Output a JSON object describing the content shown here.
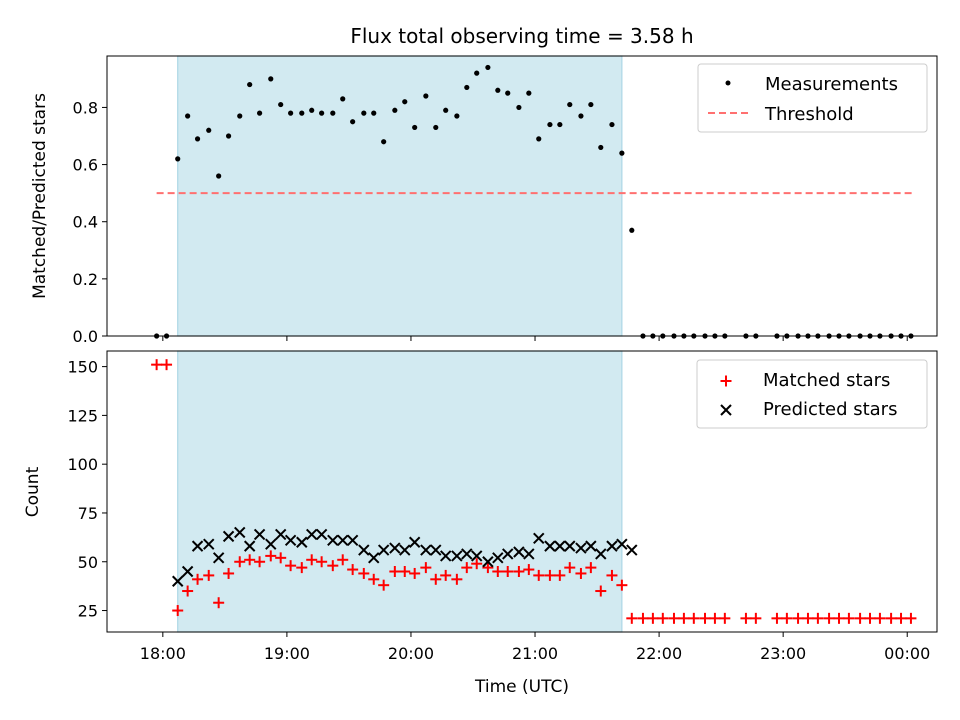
{
  "figure": {
    "title": "Flux total observing time = 3.58 h",
    "xlabel": "Time (UTC)",
    "x_ticks": [
      "18:00",
      "19:00",
      "20:00",
      "21:00",
      "22:00",
      "23:00",
      "00:00"
    ],
    "x_tick_hours": [
      18,
      19,
      20,
      21,
      22,
      23,
      24
    ],
    "xlim_hours": [
      17.55,
      24.24
    ],
    "observing_window_hours": [
      18.12,
      21.7
    ],
    "colors": {
      "window": "#add8e6",
      "measurement": "#000000",
      "threshold": "#ff7070",
      "matched": "#ff0000",
      "predicted": "#000000"
    }
  },
  "chart_data": [
    {
      "type": "scatter",
      "ylabel": "Matched/Predicted stars",
      "ylim": [
        0,
        0.98
      ],
      "y_ticks": [
        0.0,
        0.2,
        0.4,
        0.6,
        0.8
      ],
      "y_tick_labels": [
        "0.0",
        "0.2",
        "0.4",
        "0.6",
        "0.8"
      ],
      "legend_position": "top-right",
      "threshold": {
        "name": "Threshold",
        "value": 0.5,
        "x_range": [
          17.95,
          24.05
        ]
      },
      "series": [
        {
          "name": "Measurements",
          "x": [
            17.95,
            18.03,
            18.12,
            18.2,
            18.28,
            18.37,
            18.45,
            18.53,
            18.62,
            18.7,
            18.78,
            18.87,
            18.95,
            19.03,
            19.12,
            19.2,
            19.28,
            19.37,
            19.45,
            19.53,
            19.62,
            19.7,
            19.78,
            19.87,
            19.95,
            20.03,
            20.12,
            20.2,
            20.28,
            20.37,
            20.45,
            20.53,
            20.62,
            20.7,
            20.78,
            20.87,
            20.95,
            21.03,
            21.12,
            21.2,
            21.28,
            21.37,
            21.45,
            21.53,
            21.62,
            21.7,
            21.78,
            21.87,
            21.95,
            22.03,
            22.12,
            22.2,
            22.28,
            22.37,
            22.45,
            22.53,
            22.62,
            22.7,
            22.78,
            22.87,
            22.95,
            23.03,
            23.12,
            23.2,
            23.28,
            23.37,
            23.45,
            23.53,
            23.62,
            23.7,
            23.78,
            23.87,
            23.95,
            24.03
          ],
          "y": [
            0,
            0,
            0.62,
            0.77,
            0.69,
            0.72,
            0.56,
            0.7,
            0.77,
            0.88,
            0.78,
            0.9,
            0.81,
            0.78,
            0.78,
            0.79,
            0.78,
            0.78,
            0.83,
            0.75,
            0.78,
            0.78,
            0.68,
            0.79,
            0.82,
            0.73,
            0.84,
            0.73,
            0.79,
            0.77,
            0.87,
            0.92,
            0.94,
            0.86,
            0.85,
            0.8,
            0.85,
            0.69,
            0.74,
            0.74,
            0.81,
            0.77,
            0.81,
            0.66,
            0.74,
            0.64,
            0.37,
            0,
            0,
            0,
            0,
            0,
            0,
            0,
            0,
            0,
            null,
            0,
            0,
            null,
            0,
            0,
            0,
            0,
            0,
            0,
            0,
            0,
            0,
            0,
            0,
            0,
            0,
            0
          ]
        }
      ]
    },
    {
      "type": "scatter",
      "ylabel": "Count",
      "ylim": [
        14,
        158
      ],
      "y_ticks": [
        25,
        50,
        75,
        100,
        125,
        150
      ],
      "y_tick_labels": [
        "25",
        "50",
        "75",
        "100",
        "125",
        "150"
      ],
      "legend_position": "top-right",
      "series": [
        {
          "name": "Matched stars",
          "marker": "plus",
          "x": [
            17.95,
            18.03,
            18.12,
            18.2,
            18.28,
            18.37,
            18.45,
            18.53,
            18.62,
            18.7,
            18.78,
            18.87,
            18.95,
            19.03,
            19.12,
            19.2,
            19.28,
            19.37,
            19.45,
            19.53,
            19.62,
            19.7,
            19.78,
            19.87,
            19.95,
            20.03,
            20.12,
            20.2,
            20.28,
            20.37,
            20.45,
            20.53,
            20.62,
            20.7,
            20.78,
            20.87,
            20.95,
            21.03,
            21.12,
            21.2,
            21.28,
            21.37,
            21.45,
            21.53,
            21.62,
            21.7,
            21.78,
            21.87,
            21.95,
            22.03,
            22.12,
            22.2,
            22.28,
            22.37,
            22.45,
            22.53,
            22.62,
            22.7,
            22.78,
            22.87,
            22.95,
            23.03,
            23.12,
            23.2,
            23.28,
            23.37,
            23.45,
            23.53,
            23.62,
            23.7,
            23.78,
            23.87,
            23.95,
            24.03
          ],
          "y": [
            151,
            151,
            25,
            35,
            41,
            43,
            29,
            44,
            50,
            51,
            50,
            53,
            52,
            48,
            47,
            51,
            50,
            48,
            51,
            46,
            44,
            41,
            38,
            45,
            45,
            44,
            47,
            41,
            43,
            41,
            47,
            49,
            47,
            45,
            45,
            45,
            46,
            43,
            43,
            43,
            47,
            44,
            47,
            35,
            43,
            38,
            21,
            21,
            21,
            21,
            21,
            21,
            21,
            21,
            21,
            21,
            null,
            21,
            21,
            null,
            21,
            21,
            21,
            21,
            21,
            21,
            21,
            21,
            21,
            21,
            21,
            21,
            21,
            21
          ]
        },
        {
          "name": "Predicted stars",
          "marker": "x",
          "x": [
            18.12,
            18.2,
            18.28,
            18.37,
            18.45,
            18.53,
            18.62,
            18.7,
            18.78,
            18.87,
            18.95,
            19.03,
            19.12,
            19.2,
            19.28,
            19.37,
            19.45,
            19.53,
            19.62,
            19.7,
            19.78,
            19.87,
            19.95,
            20.03,
            20.12,
            20.2,
            20.28,
            20.37,
            20.45,
            20.53,
            20.62,
            20.7,
            20.78,
            20.87,
            20.95,
            21.03,
            21.12,
            21.2,
            21.28,
            21.37,
            21.45,
            21.53,
            21.62,
            21.7,
            21.78
          ],
          "y": [
            40,
            45,
            58,
            59,
            52,
            63,
            65,
            58,
            64,
            59,
            64,
            61,
            60,
            64,
            64,
            61,
            61,
            61,
            56,
            52,
            56,
            57,
            56,
            60,
            56,
            56,
            53,
            53,
            54,
            53,
            50,
            52,
            54,
            55,
            54,
            62,
            58,
            58,
            58,
            57,
            58,
            54,
            58,
            59,
            56
          ]
        }
      ]
    }
  ]
}
